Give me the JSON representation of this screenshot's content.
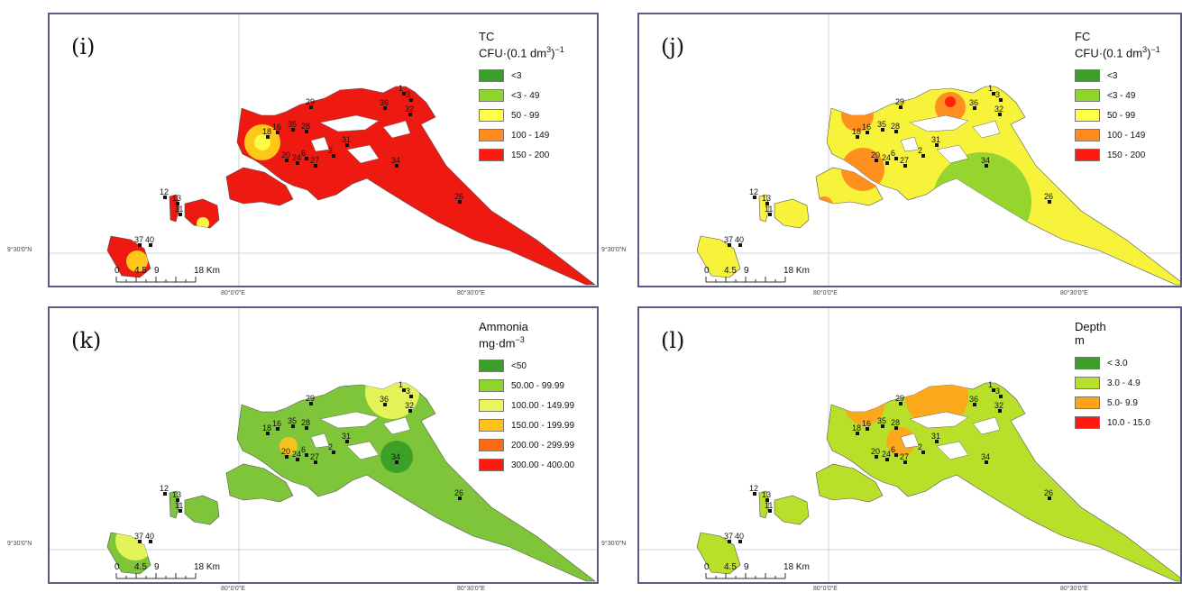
{
  "panels": [
    {
      "id": "i",
      "label": "(i)",
      "legend": {
        "title": "TC",
        "unit_prefix": "CFU·(0.1 dm",
        "unit_sup": "3",
        "unit_suffix": ")",
        "unit_sup2": "−1",
        "items": [
          {
            "label": "<3",
            "color": "#3a9e27"
          },
          {
            "label": "<3 - 49",
            "color": "#8fd32d"
          },
          {
            "label": "50 - 99",
            "color": "#ffff4a"
          },
          {
            "label": "100 - 149",
            "color": "#ff8a1e"
          },
          {
            "label": "150 - 200",
            "color": "#ff1a10"
          }
        ]
      },
      "fill": "#ee1a12",
      "overlays": [
        {
          "color": "#ffd21a",
          "cx": 236,
          "cy": 142,
          "r": 20
        },
        {
          "color": "#ffff4a",
          "cx": 236,
          "cy": 142,
          "r": 9
        },
        {
          "color": "#ffd21a",
          "cx": 97,
          "cy": 274,
          "r": 12
        },
        {
          "color": "#ffff4a",
          "cx": 170,
          "cy": 232,
          "r": 7
        }
      ]
    },
    {
      "id": "j",
      "label": "(j)",
      "legend": {
        "title": "FC",
        "unit_prefix": "CFU·(0.1 dm",
        "unit_sup": "3",
        "unit_suffix": ")",
        "unit_sup2": "−1",
        "items": [
          {
            "label": "<3",
            "color": "#3a9e27"
          },
          {
            "label": "<3 - 49",
            "color": "#8fd32d"
          },
          {
            "label": "50 - 99",
            "color": "#ffff4a"
          },
          {
            "label": "100 - 149",
            "color": "#ff8a1e"
          },
          {
            "label": "150 - 200",
            "color": "#ff1a10"
          }
        ]
      },
      "fill": "#f7f23a",
      "overlays": [
        {
          "color": "#ff8a1e",
          "cx": 242,
          "cy": 112,
          "r": 18
        },
        {
          "color": "#ff8a1e",
          "cx": 248,
          "cy": 172,
          "r": 24
        },
        {
          "color": "#ff8a1e",
          "cx": 345,
          "cy": 103,
          "r": 17
        },
        {
          "color": "#ff1a10",
          "cx": 345,
          "cy": 97,
          "r": 6
        },
        {
          "color": "#8fd32d",
          "cx": 380,
          "cy": 208,
          "r": 55
        },
        {
          "color": "#8fd32d",
          "cx": 112,
          "cy": 224,
          "r": 14
        },
        {
          "color": "#ff8a1e",
          "cx": 34,
          "cy": 268,
          "r": 14
        },
        {
          "color": "#ff8a1e",
          "cx": 205,
          "cy": 212,
          "r": 10
        }
      ]
    },
    {
      "id": "k",
      "label": "(k)",
      "legend": {
        "title": "Ammonia",
        "unit_prefix": "mg·dm",
        "unit_sup": "−3",
        "unit_suffix": "",
        "unit_sup2": "",
        "items": [
          {
            "label": "<50",
            "color": "#3a9e27"
          },
          {
            "label": "50.00 - 99.99",
            "color": "#8fd32d"
          },
          {
            "label": "100.00 - 149.99",
            "color": "#e9f55a"
          },
          {
            "label": "150.00 - 199.99",
            "color": "#ffc21a"
          },
          {
            "label": "200.00 - 299.99",
            "color": "#ff6a14"
          },
          {
            "label": "300.00 - 400.00",
            "color": "#ff1a10"
          }
        ]
      },
      "fill": "#7fc53a",
      "overlays": [
        {
          "color": "#3a9e27",
          "cx": 385,
          "cy": 162,
          "r": 18
        },
        {
          "color": "#e9f55a",
          "cx": 380,
          "cy": 90,
          "r": 30
        },
        {
          "color": "#e9f55a",
          "cx": 95,
          "cy": 255,
          "r": 22
        },
        {
          "color": "#ffc21a",
          "cx": 265,
          "cy": 150,
          "r": 10
        }
      ]
    },
    {
      "id": "l",
      "label": "(l)",
      "legend": {
        "title": "Depth",
        "unit_prefix": "m",
        "unit_sup": "",
        "unit_suffix": "",
        "unit_sup2": "",
        "items": [
          {
            "label": "< 3.0",
            "color": "#3a9e27"
          },
          {
            "label": "3.0 - 4.9",
            "color": "#b8e02a"
          },
          {
            "label": "5.0- 9.9",
            "color": "#ffa41a"
          },
          {
            "label": "10.0 - 15.0",
            "color": "#ff1a10"
          }
        ]
      },
      "fill": "#b8e02a",
      "overlays": [
        {
          "color": "#ffa41a",
          "cx": 330,
          "cy": 95,
          "r": 35
        },
        {
          "color": "#ffa41a",
          "cx": 250,
          "cy": 105,
          "r": 22
        },
        {
          "color": "#ffa41a",
          "cx": 290,
          "cy": 145,
          "r": 16
        },
        {
          "color": "#3a9e27",
          "cx": 118,
          "cy": 212,
          "r": 6
        }
      ]
    }
  ],
  "station_labels": [
    "1",
    "3",
    "29",
    "36",
    "32",
    "28",
    "16",
    "18",
    "35",
    "6",
    "31",
    "2",
    "20",
    "24",
    "27",
    "34",
    "26",
    "12",
    "13",
    "11",
    "37",
    "40"
  ],
  "scale": {
    "ticks": [
      "0",
      "4.5",
      "9",
      "18 Km"
    ]
  },
  "graticule": {
    "lat": "9°30'0\"N",
    "lon1": "80°0'0\"E",
    "lon2": "80°30'0\"E"
  }
}
